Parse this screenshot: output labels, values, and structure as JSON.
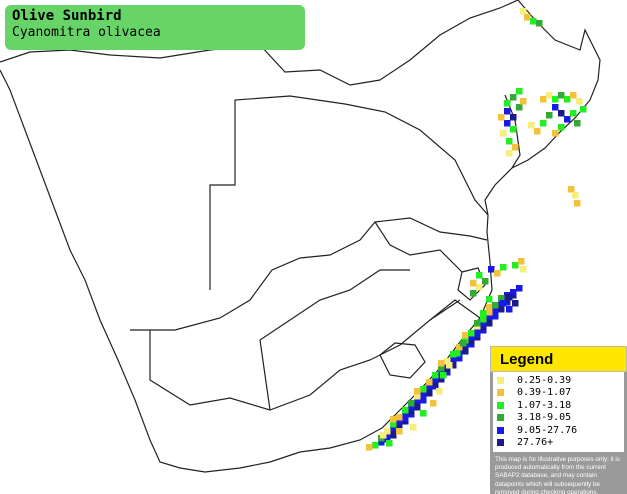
{
  "header": {
    "title": "Olive Sunbird",
    "subtitle": "Cyanomitra olivacea"
  },
  "legend": {
    "title": "Legend",
    "items": [
      {
        "label": "0.25-0.39",
        "color": "#f6ee7a"
      },
      {
        "label": "0.39-1.07",
        "color": "#f2c23a"
      },
      {
        "label": "1.07-3.18",
        "color": "#22ee22"
      },
      {
        "label": "3.18-9.05",
        "color": "#33aa33"
      },
      {
        "label": "9.05-27.76",
        "color": "#1a1ae6"
      },
      {
        "label": "27.76+",
        "color": "#1a1a8c"
      }
    ],
    "note": "This map is for illustrative purposes only; it is produced automatically from the current SABAP2 database, and may contain datapoints which will subsequently be removed during checking operations."
  }
}
